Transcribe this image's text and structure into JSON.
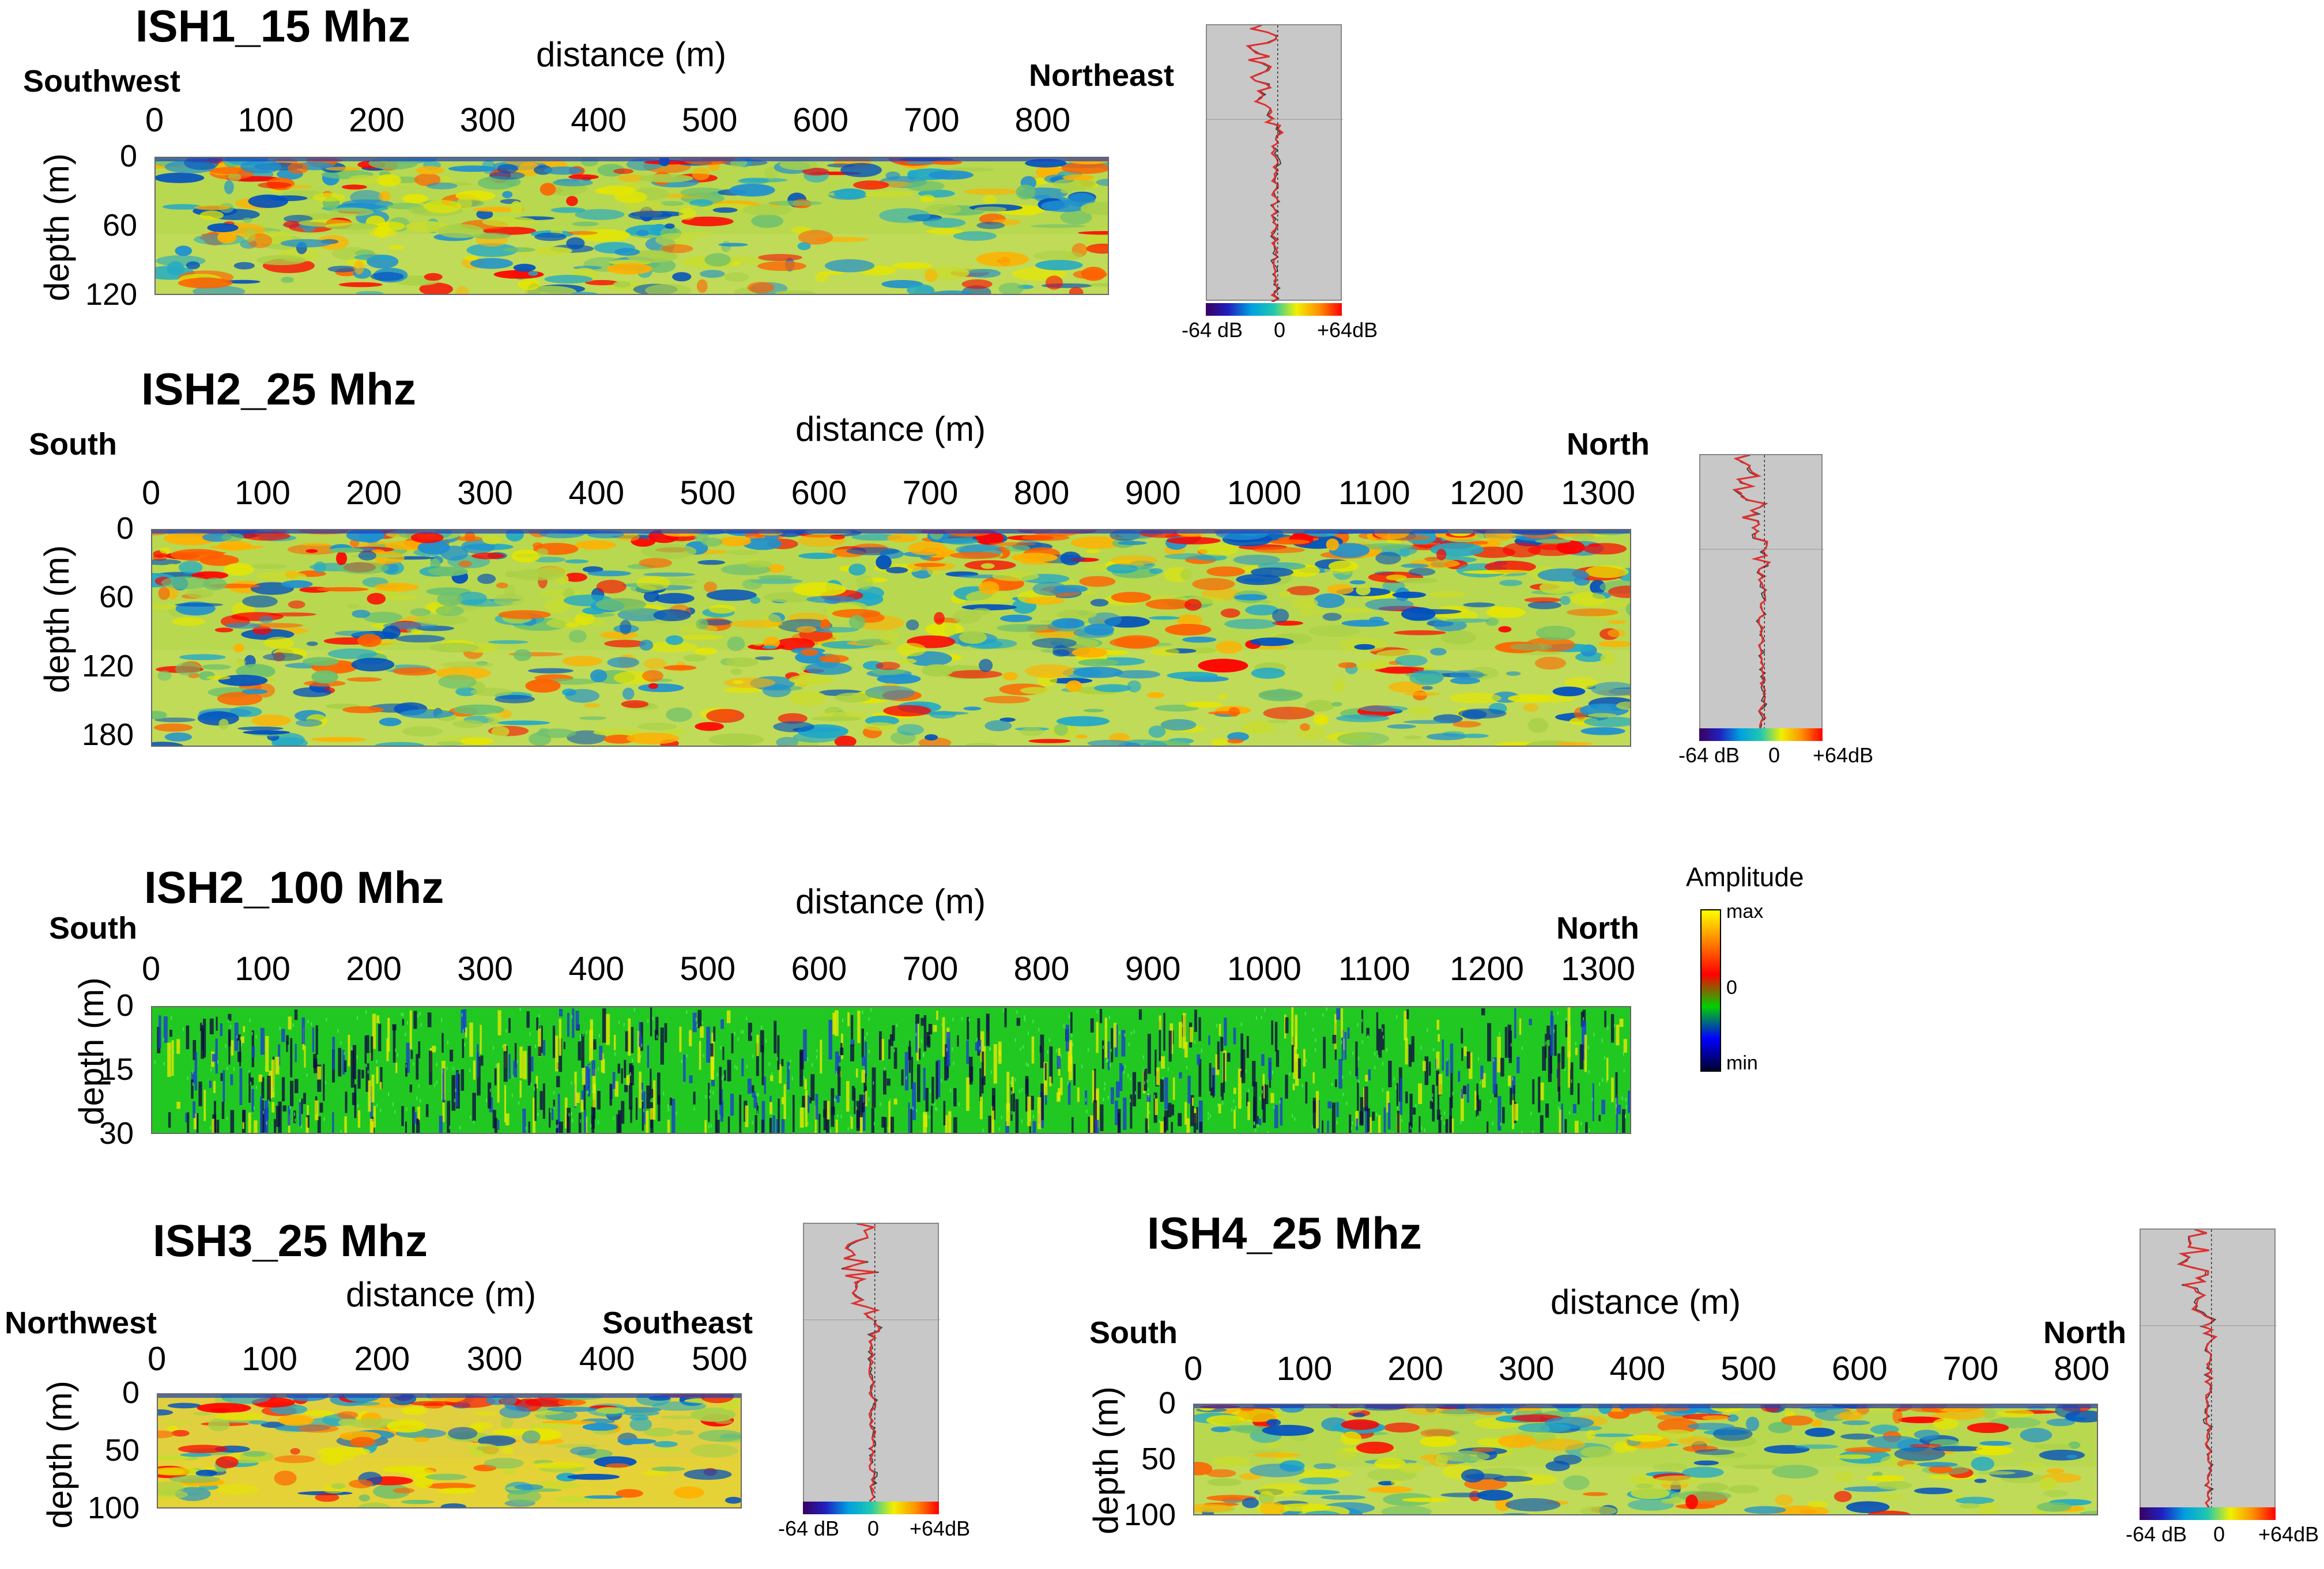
{
  "colors": {
    "db_scale": [
      "#3b0060",
      "#2020c0",
      "#00a0e0",
      "#20c8b0",
      "#f0f000",
      "#ff9000",
      "#ff0000"
    ],
    "amplitude_scale": [
      "#ffff00",
      "#ff8000",
      "#ff0000",
      "#00d000",
      "#0000ff",
      "#000030"
    ],
    "trace_bg": "#c8c8c8"
  },
  "shared": {
    "xlabel": "distance (m)",
    "ylabel": "depth (m)"
  },
  "amplitude_legend": {
    "title": "Amplitude",
    "max": "max",
    "zero": "0",
    "min": "min"
  },
  "chart_data": [
    {
      "type": "heatmap",
      "title": "ISH1_15 Mhz",
      "xlabel": "distance (m)",
      "ylabel": "depth (m)",
      "dir_left": "Southwest",
      "dir_right": "Northeast",
      "xticks": [
        "0",
        "100",
        "200",
        "300",
        "400",
        "500",
        "600",
        "700",
        "800"
      ],
      "yticks": [
        "0",
        "60",
        "120"
      ],
      "xlim": [
        0,
        860
      ],
      "ylim": [
        0,
        120
      ],
      "colorbar": [
        "-64 dB",
        "0",
        "+64dB"
      ]
    },
    {
      "type": "heatmap",
      "title": "ISH2_25 Mhz",
      "xlabel": "distance (m)",
      "ylabel": "depth (m)",
      "dir_left": "South",
      "dir_right": "North",
      "xticks": [
        "0",
        "100",
        "200",
        "300",
        "400",
        "500",
        "600",
        "700",
        "800",
        "900",
        "1000",
        "1100",
        "1200",
        "1300"
      ],
      "yticks": [
        "0",
        "60",
        "120",
        "180"
      ],
      "xlim": [
        0,
        1330
      ],
      "ylim": [
        0,
        190
      ],
      "colorbar": [
        "-64 dB",
        "0",
        "+64dB"
      ]
    },
    {
      "type": "heatmap",
      "title": "ISH2_100 Mhz",
      "xlabel": "distance (m)",
      "ylabel": "depth (m)",
      "dir_left": "South",
      "dir_right": "North",
      "xticks": [
        "0",
        "100",
        "200",
        "300",
        "400",
        "500",
        "600",
        "700",
        "800",
        "900",
        "1000",
        "1100",
        "1200",
        "1300"
      ],
      "yticks": [
        "0",
        "15",
        "30"
      ],
      "xlim": [
        0,
        1330
      ],
      "ylim": [
        0,
        30
      ]
    },
    {
      "type": "heatmap",
      "title": "ISH3_25 Mhz",
      "xlabel": "distance (m)",
      "ylabel": "depth (m)",
      "dir_left": "Northwest",
      "dir_right": "Southeast",
      "xticks": [
        "0",
        "100",
        "200",
        "300",
        "400",
        "500"
      ],
      "yticks": [
        "0",
        "50",
        "100"
      ],
      "xlim": [
        0,
        520
      ],
      "ylim": [
        0,
        100
      ],
      "colorbar": [
        "-64 dB",
        "0",
        "+64dB"
      ]
    },
    {
      "type": "heatmap",
      "title": "ISH4_25 Mhz",
      "xlabel": "distance (m)",
      "ylabel": "depth (m)",
      "dir_left": "South",
      "dir_right": "North",
      "xticks": [
        "0",
        "100",
        "200",
        "300",
        "400",
        "500",
        "600",
        "700",
        "800"
      ],
      "yticks": [
        "0",
        "50",
        "100"
      ],
      "xlim": [
        0,
        815
      ],
      "ylim": [
        0,
        100
      ],
      "colorbar": [
        "-64 dB",
        "0",
        "+64dB"
      ]
    }
  ]
}
